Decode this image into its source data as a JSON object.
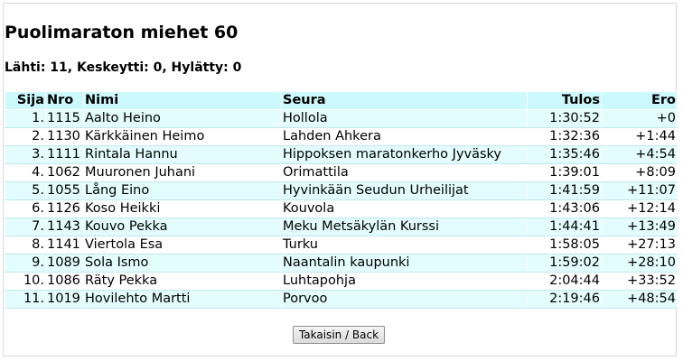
{
  "page": {
    "title": "Puolimaraton miehet 60",
    "summary": "Lähti: 11, Keskeytti: 0, Hylätty: 0"
  },
  "table": {
    "headers": {
      "sija": "Sija",
      "nro": "Nro",
      "nimi": "Nimi",
      "seura": "Seura",
      "tulos": "Tulos",
      "ero": "Ero"
    },
    "rows": [
      {
        "sija": "1.",
        "nro": "1115",
        "nimi": "Aalto Heino",
        "seura": "Hollola",
        "tulos": "1:30:52",
        "ero": "+0"
      },
      {
        "sija": "2.",
        "nro": "1130",
        "nimi": "Kärkkäinen Heimo",
        "seura": "Lahden Ahkera",
        "tulos": "1:32:36",
        "ero": "+1:44"
      },
      {
        "sija": "3.",
        "nro": "1111",
        "nimi": "Rintala Hannu",
        "seura": "Hippoksen maratonkerho Jyväsky",
        "tulos": "1:35:46",
        "ero": "+4:54"
      },
      {
        "sija": "4.",
        "nro": "1062",
        "nimi": "Muuronen Juhani",
        "seura": "Orimattila",
        "tulos": "1:39:01",
        "ero": "+8:09"
      },
      {
        "sija": "5.",
        "nro": "1055",
        "nimi": "Lång Eino",
        "seura": "Hyvinkään Seudun Urheilijat",
        "tulos": "1:41:59",
        "ero": "+11:07"
      },
      {
        "sija": "6.",
        "nro": "1126",
        "nimi": "Koso Heikki",
        "seura": "Kouvola",
        "tulos": "1:43:06",
        "ero": "+12:14"
      },
      {
        "sija": "7.",
        "nro": "1143",
        "nimi": "Kouvo Pekka",
        "seura": "Meku Metsäkylän Kurssi",
        "tulos": "1:44:41",
        "ero": "+13:49"
      },
      {
        "sija": "8.",
        "nro": "1141",
        "nimi": "Viertola Esa",
        "seura": "Turku",
        "tulos": "1:58:05",
        "ero": "+27:13"
      },
      {
        "sija": "9.",
        "nro": "1089",
        "nimi": "Sola Ismo",
        "seura": "Naantalin kaupunki",
        "tulos": "1:59:02",
        "ero": "+28:10"
      },
      {
        "sija": "10.",
        "nro": "1086",
        "nimi": "Räty Pekka",
        "seura": "Luhtapohja",
        "tulos": "2:04:44",
        "ero": "+33:52"
      },
      {
        "sija": "11.",
        "nro": "1019",
        "nimi": "Hovilehto Martti",
        "seura": "Porvoo",
        "tulos": "2:19:46",
        "ero": "+48:54"
      }
    ]
  },
  "actions": {
    "back_label": "Takaisin / Back"
  },
  "colors": {
    "header_bg": "#ccf9fc",
    "alt_row_bg": "#e3fcfd"
  }
}
